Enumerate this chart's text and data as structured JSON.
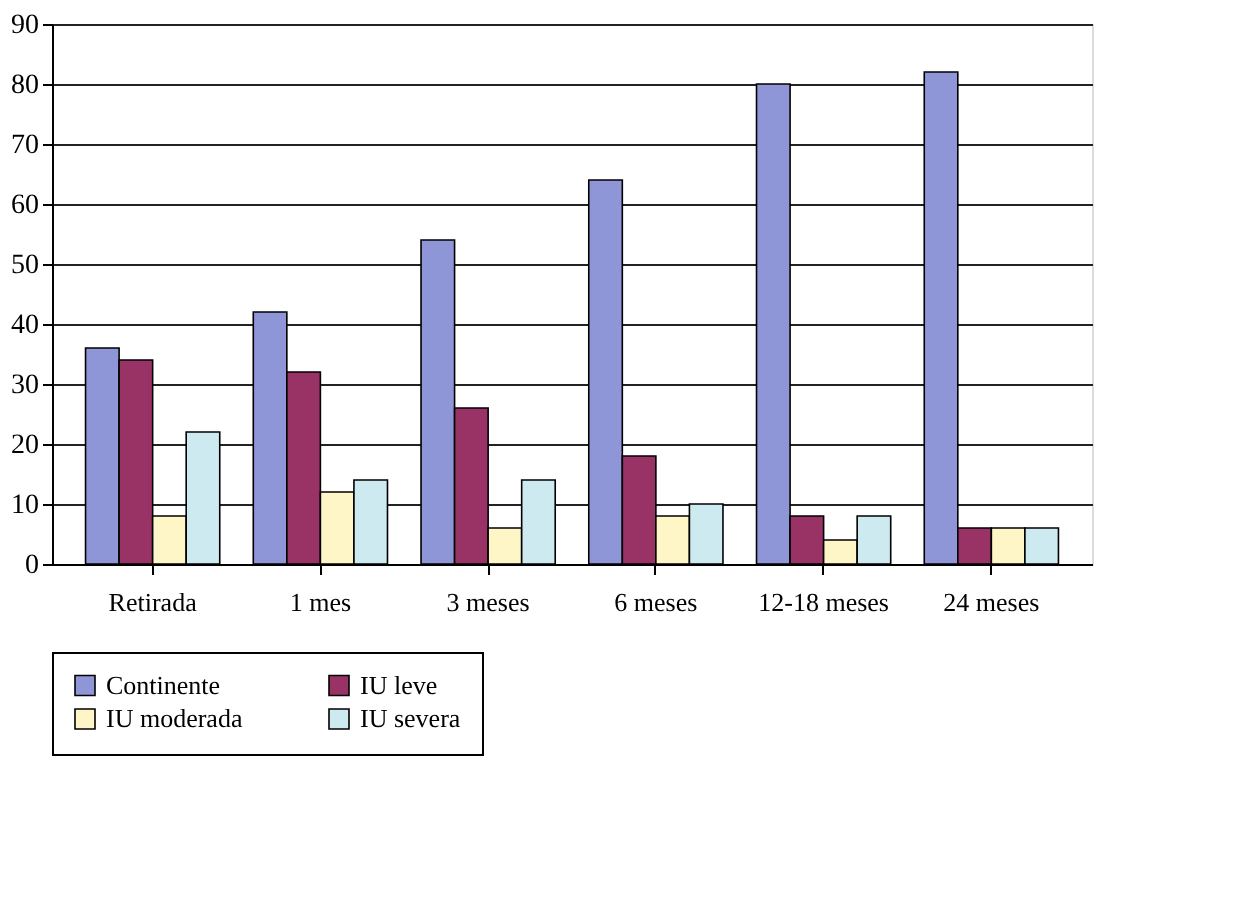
{
  "chart_data": {
    "type": "bar",
    "categories": [
      "Retirada",
      "1 mes",
      "3 meses",
      "6 meses",
      "12-18 meses",
      "24 meses"
    ],
    "series": [
      {
        "name": "Continente",
        "color": "#8e96d8",
        "values": [
          36,
          42,
          54,
          64,
          80,
          82
        ]
      },
      {
        "name": "IU leve",
        "color": "#993366",
        "values": [
          34,
          32,
          26,
          18,
          8,
          6
        ]
      },
      {
        "name": "IU moderada",
        "color": "#fff6c8",
        "values": [
          8,
          12,
          6,
          8,
          4,
          6
        ]
      },
      {
        "name": "IU severa",
        "color": "#cdeaf0",
        "values": [
          22,
          14,
          14,
          10,
          8,
          6
        ]
      }
    ],
    "ylim": [
      0,
      90
    ],
    "yticks": [
      0,
      10,
      20,
      30,
      40,
      50,
      60,
      70,
      80,
      90
    ],
    "grid": "y",
    "legend": "bottom"
  }
}
